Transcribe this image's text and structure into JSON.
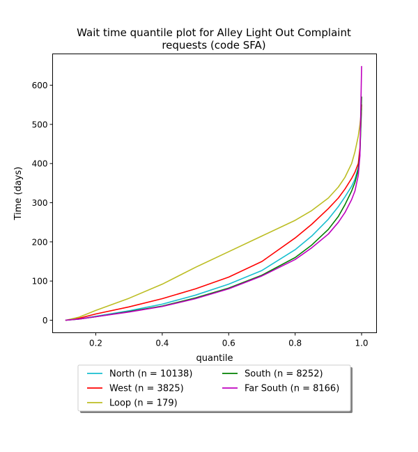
{
  "chart_data": {
    "type": "line",
    "title": "Wait time quantile plot for Alley Light Out Complaint\nrequests (code SFA)",
    "title_lines": [
      "Wait time quantile plot for Alley Light Out Complaint",
      "requests (code SFA)"
    ],
    "xlabel": "quantile",
    "ylabel": "Time (days)",
    "xlim": [
      0.07,
      1.045
    ],
    "ylim": [
      -32,
      680
    ],
    "xticks": [
      0.2,
      0.4,
      0.6,
      0.8,
      1.0
    ],
    "xtick_labels": [
      "0.2",
      "0.4",
      "0.6",
      "0.8",
      "1.0"
    ],
    "yticks": [
      0,
      100,
      200,
      300,
      400,
      500,
      600
    ],
    "ytick_labels": [
      "0",
      "100",
      "200",
      "300",
      "400",
      "500",
      "600"
    ],
    "grid": false,
    "legend_position": "below-center",
    "series": [
      {
        "name": "North (n = 10138)",
        "color": "#17becf",
        "x": [
          0.11,
          0.15,
          0.2,
          0.3,
          0.4,
          0.5,
          0.6,
          0.7,
          0.8,
          0.85,
          0.9,
          0.93,
          0.95,
          0.97,
          0.98,
          0.99,
          0.995,
          1.0
        ],
        "y": [
          0,
          3,
          10,
          24,
          41,
          64,
          92,
          127,
          180,
          215,
          258,
          290,
          315,
          342,
          360,
          390,
          430,
          540
        ]
      },
      {
        "name": "West (n = 3825)",
        "color": "#ff0000",
        "x": [
          0.11,
          0.15,
          0.2,
          0.3,
          0.4,
          0.5,
          0.6,
          0.7,
          0.8,
          0.85,
          0.9,
          0.93,
          0.95,
          0.97,
          0.98,
          0.99,
          0.995,
          1.0
        ],
        "y": [
          0,
          5,
          16,
          34,
          55,
          80,
          110,
          150,
          210,
          245,
          285,
          312,
          335,
          362,
          378,
          400,
          440,
          550
        ]
      },
      {
        "name": "Loop (n = 179)",
        "color": "#bcbd22",
        "x": [
          0.11,
          0.15,
          0.2,
          0.3,
          0.4,
          0.5,
          0.6,
          0.7,
          0.8,
          0.85,
          0.9,
          0.93,
          0.95,
          0.97,
          0.98,
          0.99,
          0.995,
          1.0
        ],
        "y": [
          0,
          8,
          25,
          56,
          92,
          135,
          175,
          215,
          255,
          280,
          312,
          340,
          365,
          400,
          430,
          470,
          500,
          540
        ]
      },
      {
        "name": "South (n = 8252)",
        "color": "#008000",
        "x": [
          0.11,
          0.15,
          0.2,
          0.3,
          0.4,
          0.5,
          0.6,
          0.7,
          0.8,
          0.85,
          0.9,
          0.93,
          0.95,
          0.97,
          0.98,
          0.99,
          0.995,
          1.0
        ],
        "y": [
          0,
          3,
          9,
          22,
          36,
          57,
          82,
          115,
          160,
          192,
          232,
          265,
          295,
          330,
          352,
          385,
          425,
          570
        ]
      },
      {
        "name": "Far South (n = 8166)",
        "color": "#bf00bf",
        "x": [
          0.11,
          0.15,
          0.2,
          0.3,
          0.4,
          0.5,
          0.6,
          0.7,
          0.8,
          0.85,
          0.9,
          0.93,
          0.95,
          0.97,
          0.98,
          0.99,
          0.995,
          1.0
        ],
        "y": [
          0,
          3,
          9,
          21,
          35,
          55,
          80,
          113,
          155,
          185,
          220,
          250,
          275,
          308,
          330,
          370,
          420,
          648
        ]
      }
    ]
  }
}
